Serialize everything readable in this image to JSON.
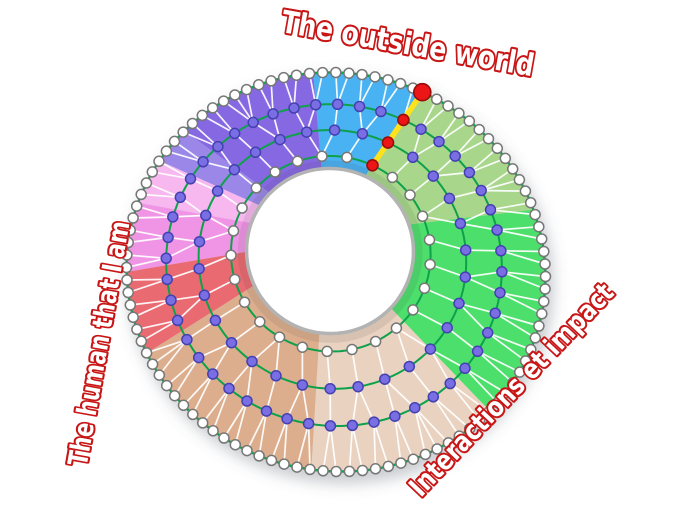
{
  "page": {
    "background": "#ffffff"
  },
  "labels": {
    "top": {
      "text": "The outside world"
    },
    "left": {
      "text": "The human that I am"
    },
    "right": {
      "text": "Interactions et impact"
    },
    "style": {
      "fill": "#ffffff",
      "outline": "#c81616"
    }
  },
  "diagram": {
    "description": "Tilted torus (wheel) network of life domains: four concentric rings of nodes triangulated by white edges, colored category sectors, and one highlighted yellow spoke with red nodes",
    "ring_color": "#0ea14b",
    "edge_color": "rgba(255,255,255,0.92)",
    "hole_rim_color": "#b3b3b3",
    "node_colors": {
      "white_fill": "#ffffff",
      "white_stroke": "#777777",
      "purple_fill": "#7a6ee4",
      "purple_stroke": "#4441b0"
    },
    "rings": [
      {
        "name": "outer",
        "t": 1.0,
        "count": 100,
        "node": "white"
      },
      {
        "name": "ring2",
        "t": 0.67,
        "count": 48,
        "node": "purple"
      },
      {
        "name": "ring3",
        "t": 0.4,
        "count": 30,
        "node": "purple"
      },
      {
        "name": "inner",
        "t": 0.13,
        "count": 25,
        "node": "white"
      }
    ],
    "sectors": [
      {
        "name": "blue",
        "color": "#4ab2f2",
        "from": 78.0,
        "to": 108.6
      },
      {
        "name": "violet-dark",
        "color": "#8668e2",
        "from": 108.6,
        "to": 148.7
      },
      {
        "name": "violet-light",
        "color": "#9b87e8",
        "from": 148.7,
        "to": 159.8
      },
      {
        "name": "pink-light",
        "color": "#f6b8ef",
        "from": 159.8,
        "to": 173.4
      },
      {
        "name": "magenta",
        "color": "#f095e5",
        "from": 173.4,
        "to": 193.7
      },
      {
        "name": "red",
        "color": "#ea6a71",
        "from": 193.7,
        "to": 217.7
      },
      {
        "name": "tan-dark",
        "color": "#dcae8d",
        "from": 217.7,
        "to": 275.6
      },
      {
        "name": "tan-light",
        "color": "#e9d2c0",
        "from": 275.6,
        "to": 329.6
      },
      {
        "name": "green-bright",
        "color": "#4ddf6c",
        "from": 329.6,
        "to": 391.9
      },
      {
        "name": "green-sage",
        "color": "#a8d78c",
        "from": 31.9,
        "to": 78.0
      }
    ],
    "highlight": {
      "angle": 78.0,
      "line_color": "#ffe11c",
      "node_color": "#ec1414",
      "node_stroke": "#990b0b"
    }
  }
}
